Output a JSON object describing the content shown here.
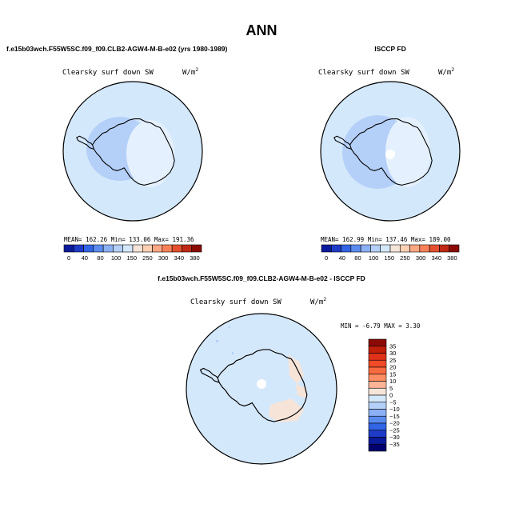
{
  "title": "ANN",
  "panels": [
    {
      "header": "f.e15b03wch.F55W5SC.f09_f09.CLB2-AGW4-M-B-e02 (yrs 1980-1989)",
      "variable": "Clearsky surf down SW",
      "units": "W/m",
      "units_exp": "2",
      "mean_label": "MEAN=",
      "mean": "162.26",
      "min_label": "Min=",
      "min": "133.06",
      "max_label": "Max=",
      "max": "191.36",
      "fill": "#d4e8fc",
      "ice_fill": "#e4f0fd",
      "band_fill": "#b4cff8",
      "has_pole_hole": false
    },
    {
      "header": "ISCCP FD",
      "variable": "Clearsky surf down SW",
      "units": "W/m",
      "units_exp": "2",
      "mean_label": "MEAN=",
      "mean": "162.99",
      "min_label": "Min=",
      "min": "137.46",
      "max_label": "Max=",
      "max": "189.00",
      "fill": "#d4e8fc",
      "ice_fill": "#e4f0fd",
      "band_fill": "#b4cff8",
      "has_pole_hole": true
    }
  ],
  "abs_colorbar": {
    "colors": [
      "#0a1a9a",
      "#1e3cc8",
      "#3264e6",
      "#5a8cf0",
      "#8cb0f5",
      "#b4cff8",
      "#d4e8fc",
      "#f6e4d8",
      "#fcd0b4",
      "#fca882",
      "#f88058",
      "#e4502e",
      "#be2814",
      "#8a0a05"
    ],
    "labels": [
      "0",
      "40",
      "80",
      "100",
      "150",
      "250",
      "300",
      "340",
      "380"
    ]
  },
  "diff": {
    "header": "f.e15b03wch.F55W5SC.f09_f09.CLB2-AGW4-M-B-e02 - ISCCP FD",
    "variable": "Clearsky surf down SW",
    "units": "W/m",
    "units_exp": "2",
    "min_label": "MIN =",
    "min": "-6.79",
    "max_label": "MAX =",
    "max": "3.30",
    "fill": "#d4e8fc",
    "warm_fill": "#f6e4d8",
    "colorbar": {
      "colors": [
        "#8a0a05",
        "#be1e0a",
        "#e0321a",
        "#f04a28",
        "#f86a40",
        "#fc8e64",
        "#fcb496",
        "#f6e4d8",
        "#d4e8fc",
        "#b4cff8",
        "#8cb0f5",
        "#5a8cf0",
        "#3264e6",
        "#1e3cc8",
        "#0a1a9a",
        "#00006e"
      ],
      "labels": [
        "35",
        "30",
        "25",
        "20",
        "15",
        "10",
        "5",
        "0",
        "−5",
        "−10",
        "−15",
        "−20",
        "−25",
        "−30",
        "−35"
      ]
    }
  }
}
